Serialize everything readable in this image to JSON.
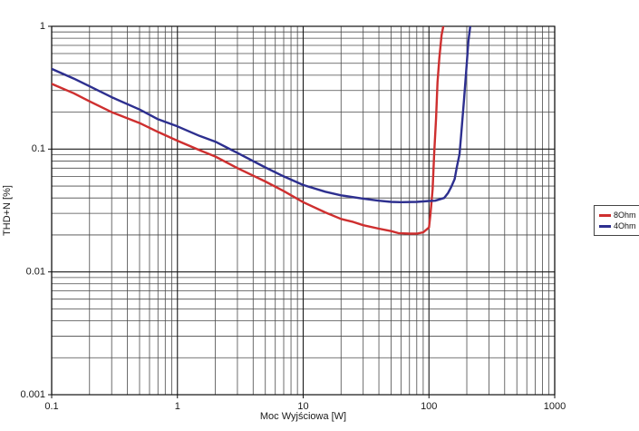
{
  "chart_data": {
    "type": "line",
    "title": "",
    "xlabel": "Moc Wyjściowa [W]",
    "ylabel": "THD+N [%]",
    "x_scale": "log",
    "y_scale": "log",
    "xlim": [
      0.1,
      1000
    ],
    "ylim": [
      0.001,
      1
    ],
    "x_tick_labels": [
      "0.1",
      "1",
      "10",
      "100",
      "1000"
    ],
    "x_tick_values": [
      0.1,
      1,
      10,
      100,
      1000
    ],
    "y_tick_labels": [
      "1",
      "0.1",
      "0.01",
      "0.001"
    ],
    "y_tick_values": [
      1,
      0.1,
      0.01,
      0.001
    ],
    "grid": "major+minor logarithmic grid on both axes",
    "legend_position": "right-outside",
    "colors": {
      "grid_minor": "#4a4a4a",
      "grid_major": "#1a1a1a",
      "axis": "#111111"
    },
    "series": [
      {
        "name": "8Ohm",
        "color": "#ce2f2f",
        "points": [
          [
            0.1,
            0.34
          ],
          [
            0.15,
            0.285
          ],
          [
            0.2,
            0.245
          ],
          [
            0.3,
            0.2
          ],
          [
            0.5,
            0.163
          ],
          [
            0.7,
            0.138
          ],
          [
            1,
            0.117
          ],
          [
            1.5,
            0.098
          ],
          [
            2,
            0.087
          ],
          [
            3,
            0.07
          ],
          [
            5,
            0.0545
          ],
          [
            7,
            0.0455
          ],
          [
            10,
            0.037
          ],
          [
            15,
            0.0305
          ],
          [
            20,
            0.027
          ],
          [
            25,
            0.0255
          ],
          [
            30,
            0.024
          ],
          [
            40,
            0.0225
          ],
          [
            50,
            0.0215
          ],
          [
            57,
            0.0207
          ],
          [
            70,
            0.0205
          ],
          [
            80,
            0.0205
          ],
          [
            90,
            0.021
          ],
          [
            100,
            0.023
          ],
          [
            103,
            0.03
          ],
          [
            107,
            0.047
          ],
          [
            110,
            0.091
          ],
          [
            114,
            0.178
          ],
          [
            117,
            0.35
          ],
          [
            121,
            0.55
          ],
          [
            126,
            0.85
          ],
          [
            130,
            1.0
          ]
        ]
      },
      {
        "name": "4Ohm",
        "color": "#2d2f8f",
        "points": [
          [
            0.1,
            0.45
          ],
          [
            0.15,
            0.375
          ],
          [
            0.2,
            0.325
          ],
          [
            0.3,
            0.265
          ],
          [
            0.5,
            0.21
          ],
          [
            0.7,
            0.175
          ],
          [
            1,
            0.153
          ],
          [
            1.5,
            0.128
          ],
          [
            2,
            0.115
          ],
          [
            3,
            0.093
          ],
          [
            5,
            0.071
          ],
          [
            7,
            0.06
          ],
          [
            10,
            0.051
          ],
          [
            15,
            0.045
          ],
          [
            20,
            0.042
          ],
          [
            30,
            0.0395
          ],
          [
            40,
            0.038
          ],
          [
            50,
            0.0372
          ],
          [
            60,
            0.037
          ],
          [
            80,
            0.0372
          ],
          [
            100,
            0.0378
          ],
          [
            112,
            0.038
          ],
          [
            132,
            0.04
          ],
          [
            142,
            0.044
          ],
          [
            150,
            0.049
          ],
          [
            160,
            0.057
          ],
          [
            166,
            0.07
          ],
          [
            175,
            0.091
          ],
          [
            180,
            0.128
          ],
          [
            190,
            0.25
          ],
          [
            200,
            0.5
          ],
          [
            206,
            0.76
          ],
          [
            213,
            1.0
          ]
        ]
      }
    ]
  }
}
